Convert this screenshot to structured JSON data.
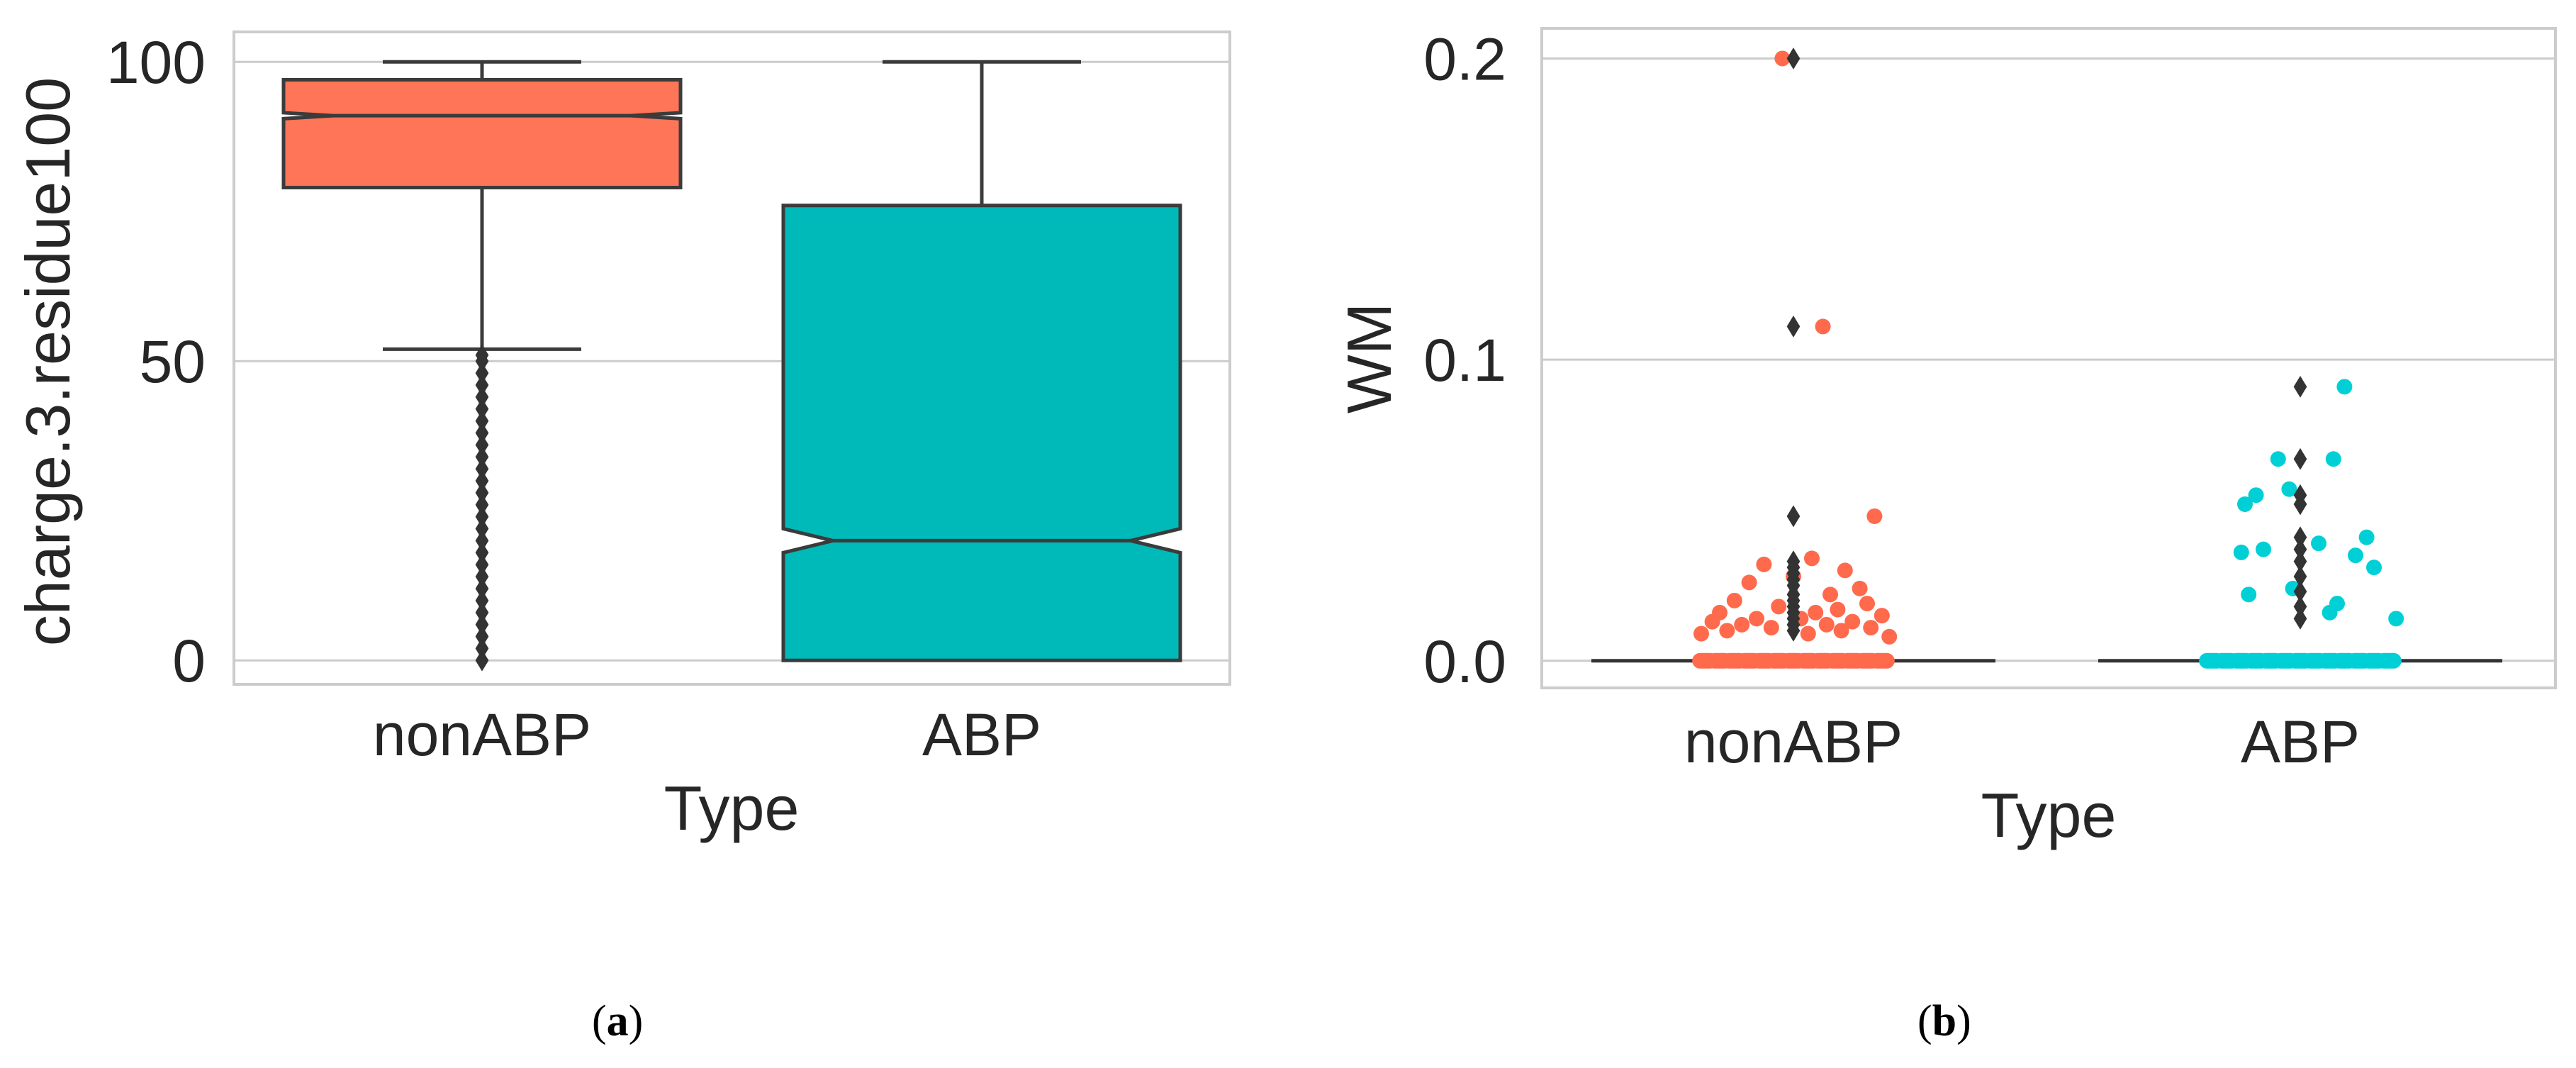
{
  "chart_data": [
    {
      "type": "boxplot",
      "panel_label": "a",
      "xlabel": "Type",
      "ylabel": "charge.3.residue100",
      "categories": [
        "nonABP",
        "ABP"
      ],
      "ylim": [
        -4,
        105
      ],
      "yticks": [
        0,
        50,
        100
      ],
      "ytick_labels": [
        "0",
        "50",
        "100"
      ],
      "grid": true,
      "notched": true,
      "colors": [
        "#ff7557",
        "#00b9b9"
      ],
      "boxes": [
        {
          "name": "nonABP",
          "whisker_low": 52,
          "q1": 79,
          "median": 91,
          "q3": 97,
          "whisker_high": 100,
          "notch_low": 90.5,
          "notch_high": 91.5,
          "outliers": [
            0,
            2,
            4,
            6,
            8,
            10,
            12,
            14,
            16,
            18,
            20,
            22,
            24,
            26,
            28,
            30,
            32,
            34,
            36,
            38,
            40,
            42,
            44,
            46,
            48,
            50,
            51
          ]
        },
        {
          "name": "ABP",
          "whisker_low": 0,
          "q1": 0,
          "median": 20,
          "q3": 76,
          "whisker_high": 100,
          "notch_low": 18,
          "notch_high": 22,
          "outliers": []
        }
      ]
    },
    {
      "type": "boxplot_stripplot",
      "panel_label": "b",
      "xlabel": "Type",
      "ylabel": "WM",
      "categories": [
        "nonABP",
        "ABP"
      ],
      "ylim": [
        -0.009,
        0.21
      ],
      "yticks": [
        0.0,
        0.1,
        0.2
      ],
      "ytick_labels": [
        "0.0",
        "0.1",
        "0.2"
      ],
      "grid": true,
      "colors": [
        "#ff6a4d",
        "#00d0d6"
      ],
      "boxes": [
        {
          "name": "nonABP",
          "median": 0,
          "outliers": [
            0.2,
            0.111,
            0.048,
            0.033,
            0.031,
            0.029,
            0.027,
            0.025,
            0.022,
            0.02,
            0.018,
            0.016,
            0.014,
            0.012,
            0.01
          ]
        },
        {
          "name": "ABP",
          "median": 0,
          "outliers": [
            0.091,
            0.067,
            0.055,
            0.052,
            0.041,
            0.037,
            0.033,
            0.028,
            0.023,
            0.018,
            0.014
          ]
        }
      ],
      "strip_points": [
        {
          "name": "nonABP",
          "points": [
            [
              -0.03,
              0.2
            ],
            [
              0.08,
              0.111
            ],
            [
              0.22,
              0.048
            ],
            [
              0.05,
              0.034
            ],
            [
              -0.08,
              0.032
            ],
            [
              0.14,
              0.03
            ],
            [
              0.0,
              0.028
            ],
            [
              -0.12,
              0.026
            ],
            [
              0.18,
              0.024
            ],
            [
              0.1,
              0.022
            ],
            [
              -0.16,
              0.02
            ],
            [
              0.2,
              0.019
            ],
            [
              -0.04,
              0.018
            ],
            [
              0.12,
              0.017
            ],
            [
              -0.2,
              0.016
            ],
            [
              0.06,
              0.016
            ],
            [
              0.24,
              0.015
            ],
            [
              -0.1,
              0.014
            ],
            [
              0.02,
              0.014
            ],
            [
              0.16,
              0.013
            ],
            [
              -0.22,
              0.013
            ],
            [
              -0.14,
              0.012
            ],
            [
              0.09,
              0.012
            ],
            [
              0.21,
              0.011
            ],
            [
              -0.06,
              0.011
            ],
            [
              0.13,
              0.01
            ],
            [
              -0.18,
              0.01
            ],
            [
              0.04,
              0.009
            ],
            [
              -0.25,
              0.009
            ],
            [
              0.26,
              0.008
            ],
            [
              -0.24,
              0
            ],
            [
              -0.2,
              0
            ],
            [
              -0.16,
              0
            ],
            [
              -0.12,
              0
            ],
            [
              -0.08,
              0
            ],
            [
              -0.04,
              0
            ],
            [
              0.0,
              0
            ],
            [
              0.04,
              0
            ],
            [
              0.08,
              0
            ],
            [
              0.12,
              0
            ],
            [
              0.16,
              0
            ],
            [
              0.2,
              0
            ],
            [
              0.24,
              0
            ]
          ]
        },
        {
          "name": "ABP",
          "points": [
            [
              0.12,
              0.091
            ],
            [
              0.09,
              0.067
            ],
            [
              -0.06,
              0.067
            ],
            [
              -0.12,
              0.055
            ],
            [
              -0.03,
              0.057
            ],
            [
              -0.15,
              0.052
            ],
            [
              0.18,
              0.041
            ],
            [
              0.05,
              0.039
            ],
            [
              -0.1,
              0.037
            ],
            [
              -0.16,
              0.036
            ],
            [
              0.15,
              0.035
            ],
            [
              0.2,
              0.031
            ],
            [
              -0.02,
              0.024
            ],
            [
              -0.14,
              0.022
            ],
            [
              0.1,
              0.019
            ],
            [
              0.08,
              0.016
            ],
            [
              0.26,
              0.014
            ],
            [
              -0.24,
              0
            ],
            [
              -0.2,
              0
            ],
            [
              -0.16,
              0
            ],
            [
              -0.12,
              0
            ],
            [
              -0.08,
              0
            ],
            [
              -0.04,
              0
            ],
            [
              0.0,
              0
            ],
            [
              0.04,
              0
            ],
            [
              0.08,
              0
            ],
            [
              0.12,
              0
            ],
            [
              0.16,
              0
            ],
            [
              0.2,
              0
            ],
            [
              0.24,
              0
            ]
          ]
        }
      ]
    }
  ]
}
